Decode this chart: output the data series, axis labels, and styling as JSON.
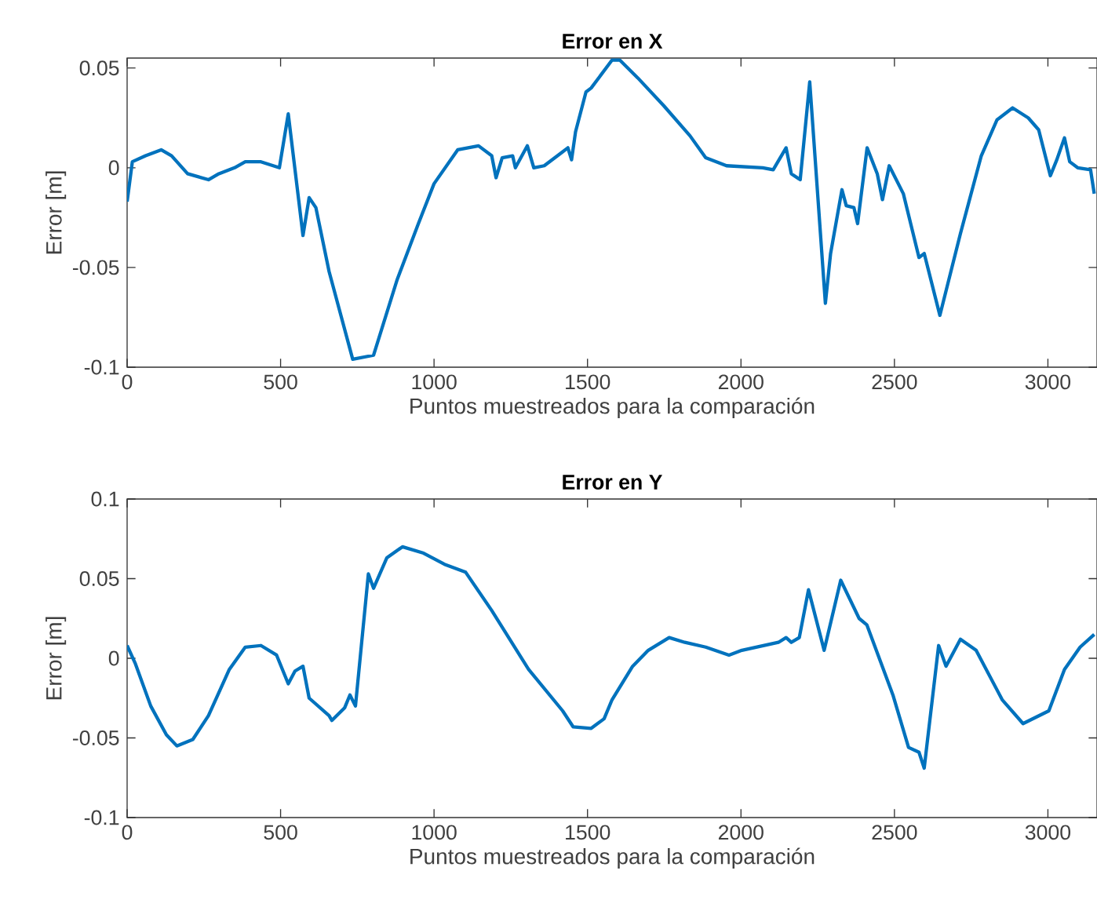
{
  "chart_data": [
    {
      "type": "line",
      "title": "Error en X",
      "xlabel": "Puntos muestreados para la comparación",
      "ylabel": "Error [m]",
      "color": "#0072bd",
      "x": [
        0,
        17,
        60,
        111,
        145,
        197,
        265,
        299,
        350,
        385,
        436,
        496,
        525,
        573,
        593,
        615,
        658,
        735,
        803,
        880,
        949,
        1000,
        1077,
        1145,
        1188,
        1202,
        1222,
        1256,
        1265,
        1304,
        1325,
        1359,
        1419,
        1436,
        1448,
        1461,
        1495,
        1512,
        1580,
        1605,
        1664,
        1749,
        1834,
        1885,
        1953,
        2071,
        2105,
        2147,
        2164,
        2193,
        2224,
        2275,
        2292,
        2329,
        2343,
        2368,
        2380,
        2411,
        2444,
        2461,
        2483,
        2529,
        2580,
        2597,
        2648,
        2715,
        2783,
        2834,
        2885,
        2936,
        2970,
        3008,
        3029,
        3054,
        3071,
        3097,
        3139,
        3151
      ],
      "values": [
        -0.017,
        0.003,
        0.006,
        0.009,
        0.006,
        -0.003,
        -0.006,
        -0.003,
        0,
        0.003,
        0.003,
        0,
        0.027,
        -0.034,
        -0.015,
        -0.02,
        -0.052,
        -0.096,
        -0.094,
        -0.056,
        -0.028,
        -0.008,
        0.009,
        0.011,
        0.006,
        -0.005,
        0.005,
        0.006,
        0,
        0.011,
        0,
        0.001,
        0.008,
        0.01,
        0.004,
        0.018,
        0.038,
        0.04,
        0.054,
        0.054,
        0.045,
        0.031,
        0.016,
        0.005,
        0.001,
        0,
        -0.001,
        0.01,
        -0.003,
        -0.006,
        0.043,
        -0.068,
        -0.043,
        -0.011,
        -0.019,
        -0.02,
        -0.028,
        0.01,
        -0.003,
        -0.016,
        0.001,
        -0.013,
        -0.045,
        -0.043,
        -0.074,
        -0.033,
        0.006,
        0.024,
        0.03,
        0.025,
        0.019,
        -0.004,
        0.004,
        0.015,
        0.003,
        0,
        -0.001,
        -0.013
      ],
      "xlim": [
        0,
        3160
      ],
      "ylim": [
        -0.1,
        0.055
      ],
      "xticks": [
        0,
        500,
        1000,
        1500,
        2000,
        2500,
        3000
      ],
      "yticks": [
        -0.1,
        -0.05,
        0,
        0.05
      ]
    },
    {
      "type": "line",
      "title": "Error en Y",
      "xlabel": "Puntos muestreados para la comparación",
      "ylabel": "Error [m]",
      "color": "#0072bd",
      "x": [
        0,
        26,
        77,
        128,
        162,
        214,
        265,
        333,
        385,
        436,
        487,
        525,
        547,
        573,
        593,
        658,
        667,
        709,
        726,
        744,
        786,
        803,
        846,
        897,
        966,
        1034,
        1103,
        1188,
        1308,
        1419,
        1453,
        1512,
        1554,
        1580,
        1647,
        1698,
        1766,
        1817,
        1885,
        1961,
        2003,
        2122,
        2147,
        2164,
        2190,
        2220,
        2271,
        2325,
        2385,
        2410,
        2495,
        2546,
        2580,
        2597,
        2644,
        2668,
        2715,
        2766,
        2851,
        2919,
        3003,
        3054,
        3105,
        3151
      ],
      "values": [
        0.008,
        -0.003,
        -0.03,
        -0.048,
        -0.055,
        -0.051,
        -0.036,
        -0.007,
        0.007,
        0.008,
        0.002,
        -0.016,
        -0.008,
        -0.005,
        -0.025,
        -0.036,
        -0.039,
        -0.031,
        -0.023,
        -0.03,
        0.053,
        0.044,
        0.063,
        0.07,
        0.066,
        0.059,
        0.054,
        0.03,
        -0.007,
        -0.033,
        -0.043,
        -0.044,
        -0.038,
        -0.026,
        -0.005,
        0.005,
        0.013,
        0.01,
        0.007,
        0.002,
        0.005,
        0.01,
        0.013,
        0.01,
        0.013,
        0.043,
        0.005,
        0.049,
        0.025,
        0.021,
        -0.023,
        -0.056,
        -0.059,
        -0.069,
        0.008,
        -0.005,
        0.012,
        0.005,
        -0.026,
        -0.041,
        -0.033,
        -0.007,
        0.007,
        0.015
      ],
      "xlim": [
        0,
        3160
      ],
      "ylim": [
        -0.1,
        0.1
      ],
      "xticks": [
        0,
        500,
        1000,
        1500,
        2000,
        2500,
        3000
      ],
      "yticks": [
        -0.1,
        -0.05,
        0,
        0.05,
        0.1
      ]
    }
  ]
}
